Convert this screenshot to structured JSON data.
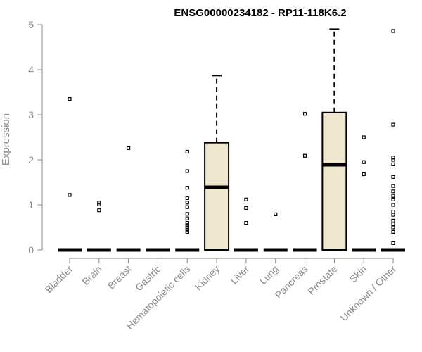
{
  "chart_data": {
    "type": "boxplot",
    "title": "ENSG00000234182 - RP11-118K6.2",
    "ylabel": "Expression",
    "xlabel": "",
    "ylim": [
      0,
      5
    ],
    "yticks": [
      0,
      1,
      2,
      3,
      4,
      5
    ],
    "categories": [
      "Bladder",
      "Brain",
      "Breast",
      "Gastric",
      "Hematopoietic cells",
      "Kidney",
      "Liver",
      "Lung",
      "Pancreas",
      "Prostate",
      "Skin",
      "Unknown / Other"
    ],
    "boxes": [
      {
        "name": "Bladder",
        "min": 0,
        "q1": 0,
        "median": 0,
        "q3": 0,
        "max": 0,
        "outliers": [
          1.22,
          3.35
        ]
      },
      {
        "name": "Brain",
        "min": 0,
        "q1": 0,
        "median": 0,
        "q3": 0,
        "max": 0,
        "outliers": [
          0.88,
          1.01,
          1.05
        ]
      },
      {
        "name": "Breast",
        "min": 0,
        "q1": 0,
        "median": 0,
        "q3": 0,
        "max": 0,
        "outliers": [
          2.26
        ]
      },
      {
        "name": "Gastric",
        "min": 0,
        "q1": 0,
        "median": 0,
        "q3": 0,
        "max": 0,
        "outliers": []
      },
      {
        "name": "Hematopoietic cells",
        "min": 0,
        "q1": 0,
        "median": 0,
        "q3": 0,
        "max": 0,
        "outliers": [
          0.4,
          0.45,
          0.5,
          0.55,
          0.6,
          0.7,
          0.8,
          0.95,
          1.05,
          1.15,
          1.38,
          1.75,
          2.18
        ]
      },
      {
        "name": "Kidney",
        "min": 0,
        "q1": 0,
        "median": 1.39,
        "q3": 2.38,
        "max": 3.87,
        "outliers": []
      },
      {
        "name": "Liver",
        "min": 0,
        "q1": 0,
        "median": 0,
        "q3": 0,
        "max": 0,
        "outliers": [
          0.6,
          0.93,
          1.12
        ]
      },
      {
        "name": "Lung",
        "min": 0,
        "q1": 0,
        "median": 0,
        "q3": 0,
        "max": 0,
        "outliers": [
          0.79
        ]
      },
      {
        "name": "Pancreas",
        "min": 0,
        "q1": 0,
        "median": 0,
        "q3": 0,
        "max": 0,
        "outliers": [
          2.09,
          3.02
        ]
      },
      {
        "name": "Prostate",
        "min": 0,
        "q1": 0,
        "median": 1.89,
        "q3": 3.05,
        "max": 4.9,
        "outliers": []
      },
      {
        "name": "Skin",
        "min": 0,
        "q1": 0,
        "median": 0,
        "q3": 0,
        "max": 0,
        "outliers": [
          1.68,
          1.95,
          2.5
        ]
      },
      {
        "name": "Unknown / Other",
        "min": 0,
        "q1": 0,
        "median": 0,
        "q3": 0,
        "max": 0,
        "outliers": [
          0.15,
          0.4,
          0.5,
          0.58,
          0.65,
          0.78,
          0.85,
          1.0,
          1.12,
          1.2,
          1.3,
          1.42,
          1.62,
          1.9,
          2.0,
          2.05,
          2.78,
          4.86
        ]
      }
    ],
    "colors": {
      "box_fill": "#efe7cf",
      "stroke": "#000000",
      "axis": "#8a8a8a"
    },
    "grid": false,
    "legend": "none"
  }
}
